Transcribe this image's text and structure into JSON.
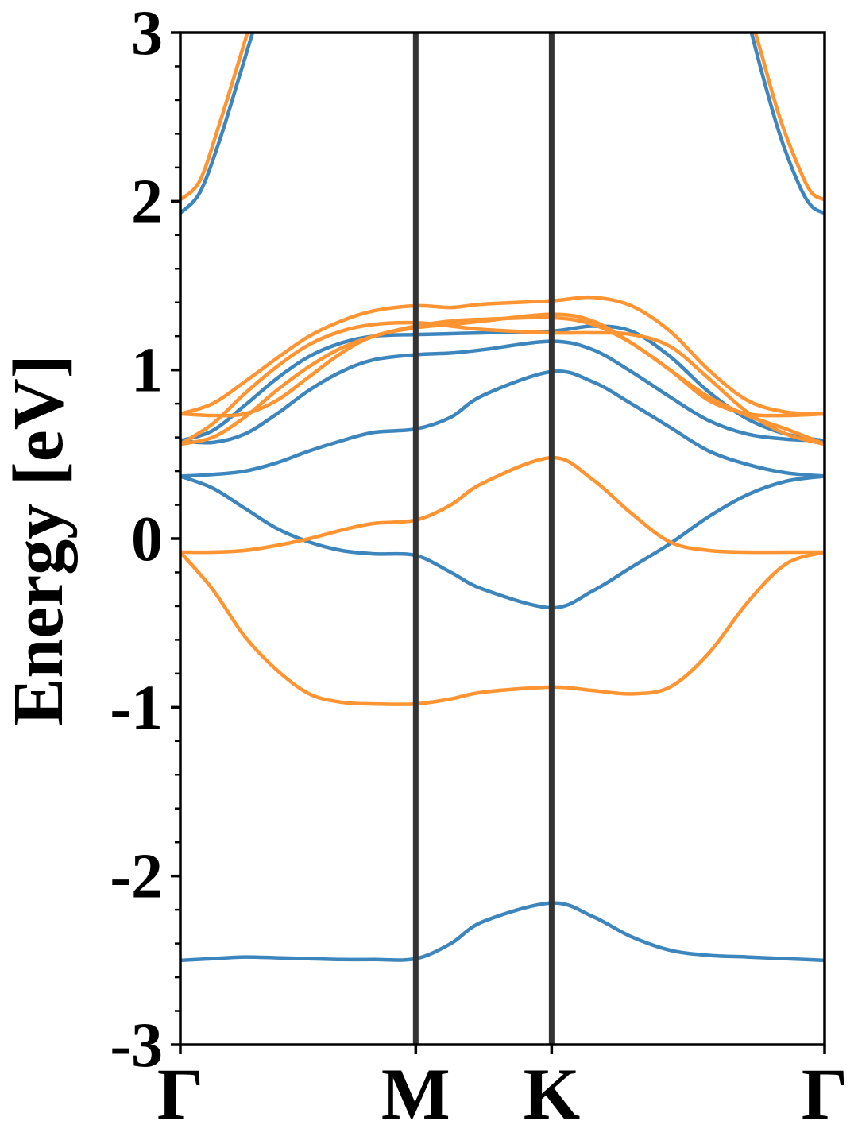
{
  "chart_data": {
    "type": "line",
    "title": "",
    "ylabel": "Energy [eV]",
    "xlabel": "",
    "ylim": [
      -3,
      3
    ],
    "y_ticks": [
      "3",
      "2",
      "1",
      "0",
      "-1",
      "-2",
      "-3"
    ],
    "y_tick_values": [
      3,
      2,
      1,
      0,
      -1,
      -2,
      -3
    ],
    "x_ticks": [
      "Γ",
      "M",
      "K",
      "Γ"
    ],
    "x_tick_values": [
      0,
      0.3654,
      0.5763,
      1.0
    ],
    "grid": false,
    "legend": "none",
    "colors": {
      "blue": "#3d85bd",
      "orange": "#ff9432",
      "kpath_line": "#333333"
    },
    "series": [
      {
        "color": "blue",
        "x": [
          0,
          0.03,
          0.06,
          0.09,
          0.12,
          0.13
        ],
        "values": [
          1.93,
          2.05,
          2.35,
          2.72,
          3.1,
          3.25
        ]
      },
      {
        "color": "orange",
        "x": [
          0,
          0.03,
          0.06,
          0.09,
          0.12,
          0.13
        ],
        "values": [
          2.01,
          2.12,
          2.45,
          2.82,
          3.2,
          3.3
        ]
      },
      {
        "color": "blue",
        "x": [
          0.87,
          0.9,
          0.93,
          0.96,
          0.98,
          1.0
        ],
        "values": [
          3.25,
          2.8,
          2.4,
          2.1,
          1.97,
          1.93
        ]
      },
      {
        "color": "orange",
        "x": [
          0.87,
          0.9,
          0.93,
          0.96,
          0.98,
          1.0
        ],
        "values": [
          3.3,
          2.9,
          2.5,
          2.2,
          2.05,
          2.01
        ]
      },
      {
        "color": "blue",
        "x": [
          0,
          0.05,
          0.1,
          0.15,
          0.2,
          0.25,
          0.3,
          0.3654,
          0.42,
          0.47,
          0.5763,
          0.64,
          0.7,
          0.76,
          0.82,
          0.88,
          0.94,
          1.0
        ],
        "values": [
          -2.5,
          -2.49,
          -2.48,
          -2.485,
          -2.49,
          -2.495,
          -2.495,
          -2.49,
          -2.4,
          -2.27,
          -2.16,
          -2.24,
          -2.36,
          -2.44,
          -2.47,
          -2.48,
          -2.49,
          -2.5
        ]
      },
      {
        "color": "blue",
        "x": [
          0,
          0.05,
          0.1,
          0.15,
          0.2,
          0.25,
          0.3,
          0.3654,
          0.42,
          0.47,
          0.5763,
          0.64,
          0.7,
          0.76,
          0.82,
          0.88,
          0.94,
          1.0
        ],
        "values": [
          0.37,
          0.3,
          0.18,
          0.06,
          -0.02,
          -0.07,
          -0.09,
          -0.1,
          -0.2,
          -0.3,
          -0.41,
          -0.31,
          -0.17,
          -0.03,
          0.13,
          0.26,
          0.34,
          0.37
        ]
      },
      {
        "color": "blue",
        "x": [
          0,
          0.05,
          0.1,
          0.15,
          0.2,
          0.25,
          0.3,
          0.3654,
          0.42,
          0.47,
          0.5763,
          0.64,
          0.7,
          0.76,
          0.82,
          0.88,
          0.94,
          1.0
        ],
        "values": [
          0.37,
          0.38,
          0.4,
          0.45,
          0.52,
          0.58,
          0.63,
          0.65,
          0.72,
          0.85,
          0.99,
          0.93,
          0.8,
          0.66,
          0.52,
          0.44,
          0.39,
          0.37
        ]
      },
      {
        "color": "blue",
        "x": [
          0,
          0.05,
          0.1,
          0.15,
          0.2,
          0.25,
          0.3,
          0.3654,
          0.42,
          0.47,
          0.5763,
          0.64,
          0.7,
          0.76,
          0.82,
          0.88,
          0.94,
          1.0
        ],
        "values": [
          0.58,
          0.57,
          0.62,
          0.74,
          0.88,
          0.99,
          1.06,
          1.09,
          1.1,
          1.12,
          1.17,
          1.12,
          0.99,
          0.84,
          0.7,
          0.62,
          0.59,
          0.58
        ]
      },
      {
        "color": "blue",
        "x": [
          0,
          0.05,
          0.1,
          0.15,
          0.2,
          0.25,
          0.3,
          0.3654,
          0.42,
          0.47,
          0.5763,
          0.64,
          0.7,
          0.76,
          0.82,
          0.88,
          0.94,
          1.0
        ],
        "values": [
          0.58,
          0.64,
          0.79,
          0.95,
          1.08,
          1.16,
          1.2,
          1.21,
          1.215,
          1.22,
          1.23,
          1.26,
          1.23,
          1.08,
          0.87,
          0.71,
          0.62,
          0.58
        ]
      },
      {
        "color": "orange",
        "x": [
          0,
          0.05,
          0.1,
          0.15,
          0.2,
          0.25,
          0.3,
          0.3654,
          0.42,
          0.47,
          0.5763,
          0.64,
          0.7,
          0.76,
          0.82,
          0.88,
          0.94,
          1.0
        ],
        "values": [
          -0.08,
          -0.08,
          -0.07,
          -0.04,
          0.0,
          0.05,
          0.09,
          0.11,
          0.2,
          0.33,
          0.48,
          0.35,
          0.15,
          -0.02,
          -0.07,
          -0.08,
          -0.08,
          -0.08
        ]
      },
      {
        "color": "orange",
        "x": [
          0,
          0.05,
          0.1,
          0.15,
          0.2,
          0.25,
          0.3,
          0.3654,
          0.42,
          0.47,
          0.5763,
          0.64,
          0.7,
          0.76,
          0.82,
          0.88,
          0.94,
          1.0
        ],
        "values": [
          -0.08,
          -0.3,
          -0.58,
          -0.78,
          -0.92,
          -0.97,
          -0.98,
          -0.98,
          -0.95,
          -0.91,
          -0.88,
          -0.9,
          -0.92,
          -0.88,
          -0.68,
          -0.38,
          -0.15,
          -0.08
        ]
      },
      {
        "color": "orange",
        "x": [
          0,
          0.05,
          0.1,
          0.15,
          0.2,
          0.25,
          0.3,
          0.3654,
          0.42,
          0.47,
          0.5763,
          0.64,
          0.7,
          0.76,
          0.82,
          0.88,
          0.94,
          1.0
        ],
        "values": [
          0.56,
          0.68,
          0.86,
          1.02,
          1.15,
          1.23,
          1.27,
          1.28,
          1.26,
          1.24,
          1.22,
          1.22,
          1.21,
          1.14,
          0.95,
          0.75,
          0.62,
          0.56
        ]
      },
      {
        "color": "orange",
        "x": [
          0,
          0.05,
          0.1,
          0.15,
          0.2,
          0.25,
          0.3,
          0.3654,
          0.42,
          0.47,
          0.5763,
          0.64,
          0.7,
          0.76,
          0.82,
          0.88,
          0.94,
          1.0
        ],
        "values": [
          0.74,
          0.73,
          0.74,
          0.82,
          0.96,
          1.1,
          1.2,
          1.25,
          1.27,
          1.29,
          1.33,
          1.29,
          1.16,
          1.0,
          0.82,
          0.74,
          0.73,
          0.74
        ]
      },
      {
        "color": "orange",
        "x": [
          0,
          0.05,
          0.1,
          0.15,
          0.2,
          0.25,
          0.3,
          0.3654,
          0.42,
          0.47,
          0.5763,
          0.64,
          0.7,
          0.76,
          0.82,
          0.88,
          0.94,
          1.0
        ],
        "values": [
          0.74,
          0.8,
          0.93,
          1.07,
          1.2,
          1.29,
          1.35,
          1.38,
          1.37,
          1.39,
          1.41,
          1.43,
          1.38,
          1.23,
          1.0,
          0.82,
          0.75,
          0.74
        ]
      },
      {
        "color": "orange",
        "x": [
          0,
          0.05,
          0.1,
          0.15,
          0.2,
          0.25,
          0.3,
          0.3654,
          0.42,
          0.47,
          0.5763,
          0.64,
          0.7,
          0.76,
          0.82,
          0.88,
          0.94,
          1.0
        ],
        "values": [
          0.56,
          0.6,
          0.72,
          0.88,
          1.02,
          1.13,
          1.2,
          1.26,
          1.29,
          1.3,
          1.31,
          1.27,
          1.16,
          1.0,
          0.84,
          0.73,
          0.65,
          0.56
        ]
      }
    ]
  }
}
